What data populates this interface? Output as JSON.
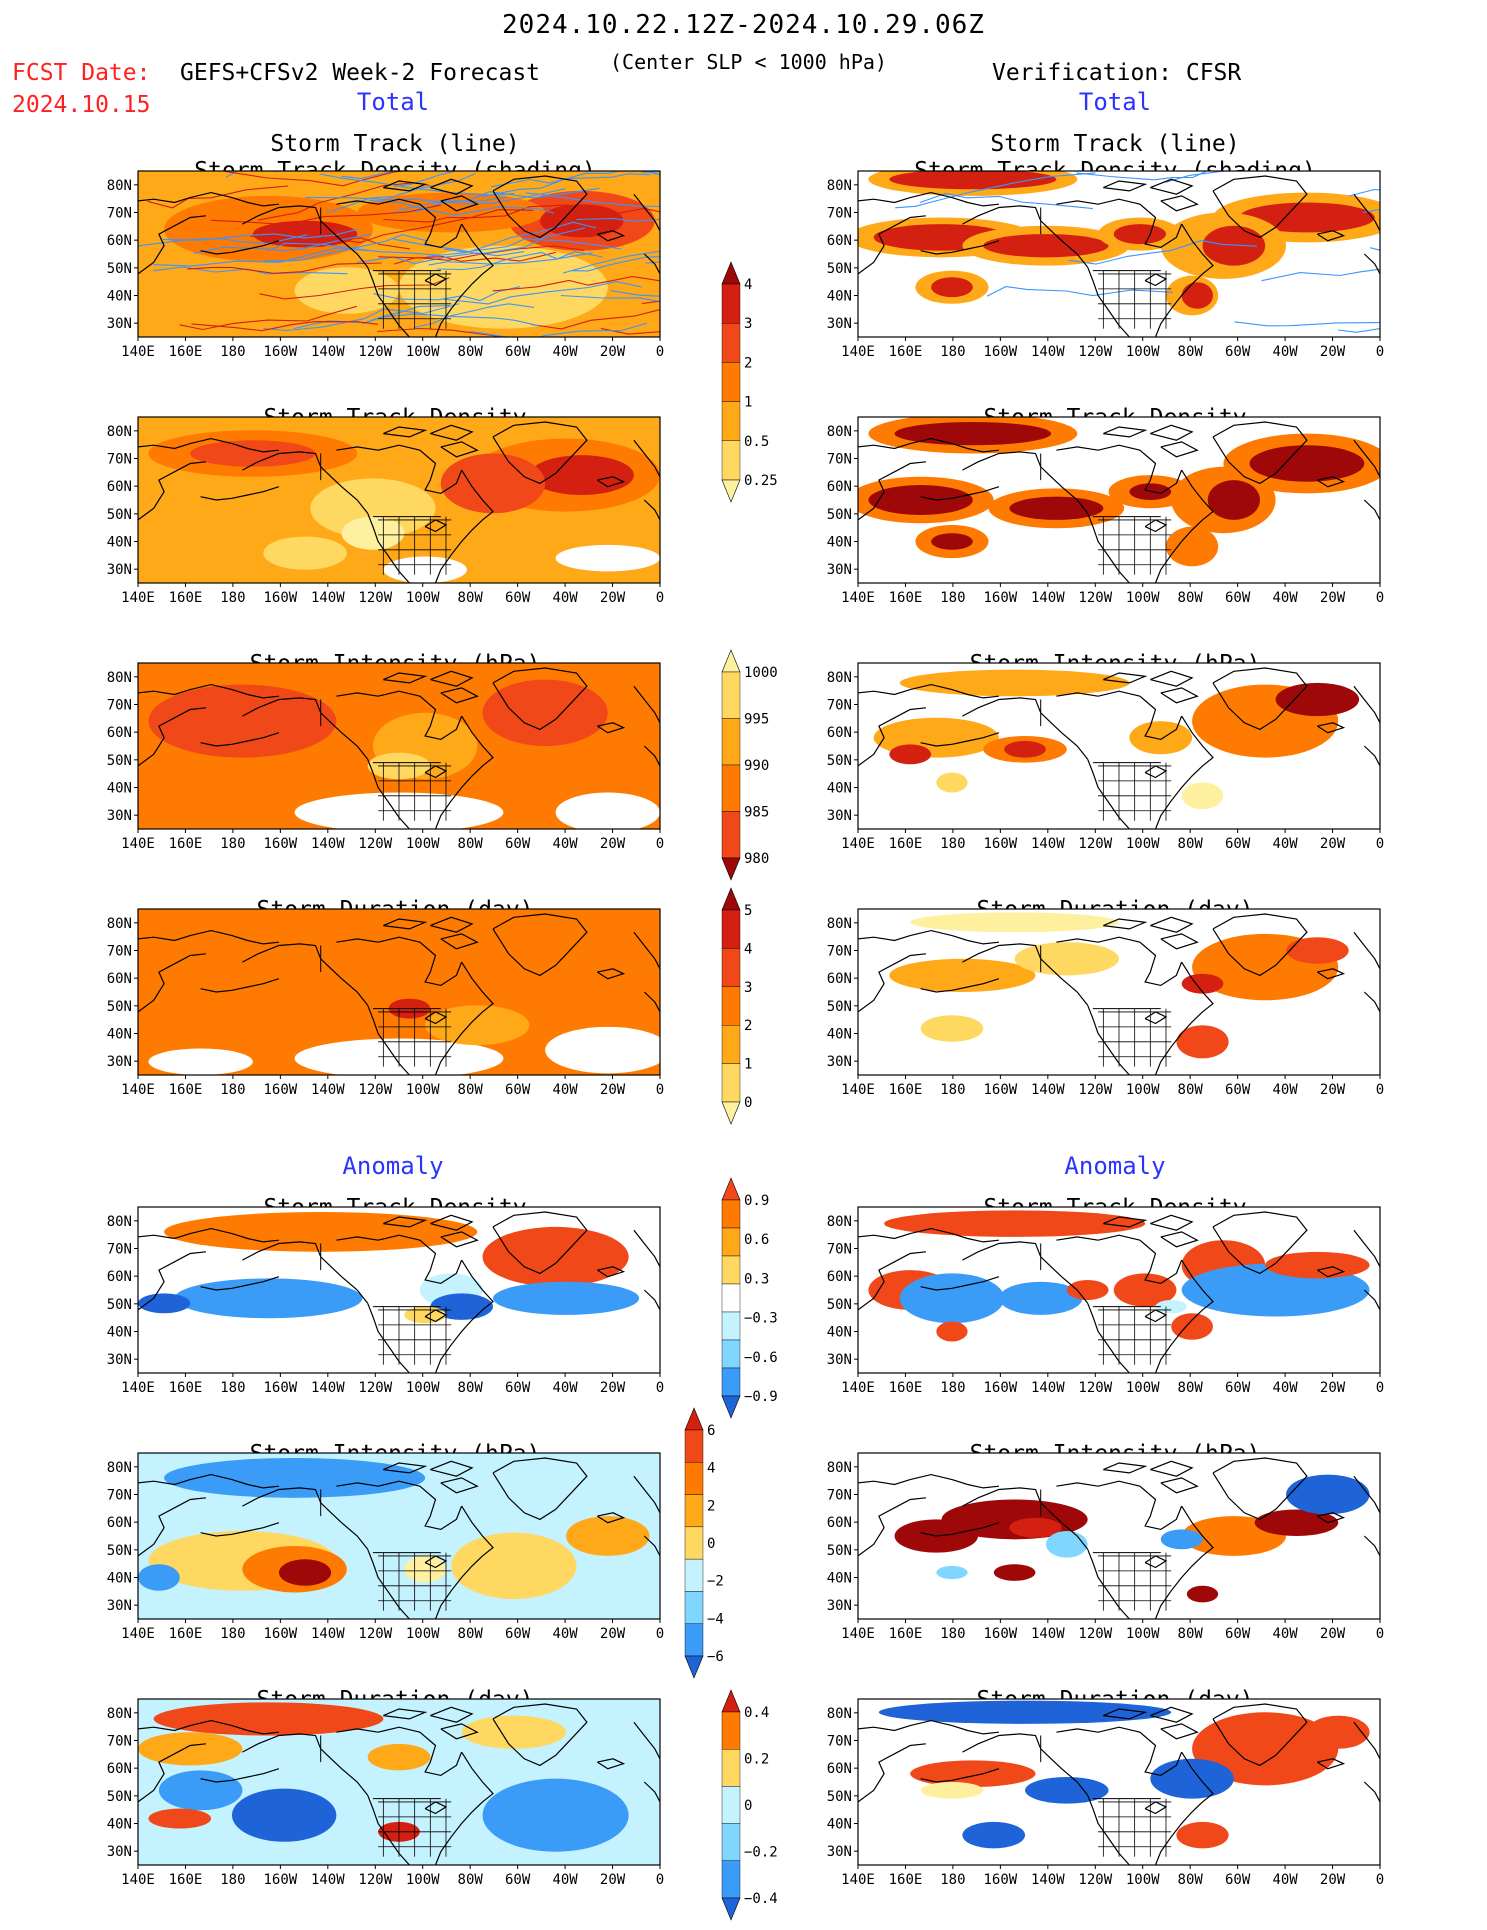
{
  "header": {
    "title": "2024.10.22.12Z-2024.10.29.06Z",
    "fcst_date_label": "FCST Date:",
    "fcst_date_value": "2024.10.15",
    "forecast_name": "GEFS+CFSv2 Week-2 Forecast",
    "threshold": "(Center SLP < 1000 hPa)",
    "verification": "Verification: CFSR"
  },
  "sections": {
    "total": "Total",
    "anomaly": "Anomaly"
  },
  "map": {
    "lat_labels": [
      "80N",
      "70N",
      "60N",
      "50N",
      "40N",
      "30N"
    ],
    "lon_labels": [
      "140E",
      "160E",
      "180",
      "160W",
      "140W",
      "120W",
      "100W",
      "80W",
      "60W",
      "40W",
      "20W",
      "0"
    ]
  },
  "panel_titles": {
    "track": [
      "Storm Track (line)",
      "Storm Track Density (shading)"
    ],
    "density": "Storm Track Density",
    "intensity": "Storm Intensity (hPa)",
    "duration": "Storm Duration (day)"
  },
  "colorbars": {
    "total_density": [
      "4",
      "3",
      "2",
      "1",
      "0.5",
      "0.25"
    ],
    "total_intensity": [
      "1000",
      "995",
      "990",
      "985",
      "980"
    ],
    "total_duration": [
      "5",
      "4",
      "3",
      "2",
      "1",
      "0"
    ],
    "anom_density": [
      "0.9",
      "0.6",
      "0.3",
      "−0.3",
      "−0.6",
      "−0.9"
    ],
    "anom_intensity": [
      "6",
      "4",
      "2",
      "0",
      "−2",
      "−4",
      "−6"
    ],
    "anom_duration": [
      "0.4",
      "0.2",
      "0",
      "−0.2",
      "−0.4"
    ]
  },
  "colors": {
    "warm": [
      "#fff0a0",
      "#ffd862",
      "#ffa818",
      "#ff7a00",
      "#f04818",
      "#d42010",
      "#9e0808"
    ],
    "cool": [
      "#c4f2ff",
      "#80d6ff",
      "#3a9cf6",
      "#1e64d8"
    ],
    "track_forecast": "#ffa818",
    "track_line": "#3c94ff"
  }
}
